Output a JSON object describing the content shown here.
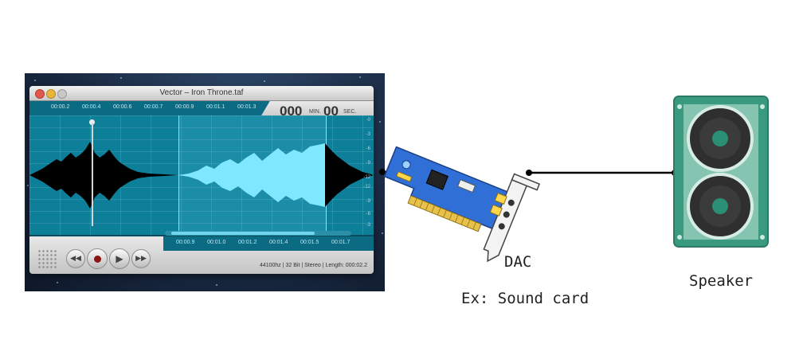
{
  "app": {
    "window_title": "Vector – Iron Throne.taf",
    "ruler_ticks": [
      "00:00.2",
      "00:00.4",
      "00:00.6",
      "00:00.7",
      "00:00.9",
      "00:01.1",
      "00:01.3"
    ],
    "minutes_value": "000",
    "minutes_unit": "MIN.",
    "seconds_value": "00",
    "seconds_unit": "SEC.",
    "db_scale": [
      "-0",
      "-3",
      "-6",
      "-9",
      "-12",
      "-12",
      "-9",
      "-6",
      "-3"
    ],
    "bottom_ticks": [
      "00:00.9",
      "00:01.0",
      "00:01.2",
      "00:01.4",
      "00:01.5",
      "00:01.7"
    ],
    "status": "44100hz | 32 Bit | Stereo | Length: 000:02.2",
    "buttons": [
      "rewind-icon",
      "record-icon",
      "play-icon",
      "fast-forward-icon"
    ],
    "colors": {
      "background": "#0d7f98",
      "waveform": "#000000",
      "selection_waveform": "#7fe7ff"
    }
  },
  "dac": {
    "label": "DAC",
    "example": "Ex: Sound card"
  },
  "speaker": {
    "label": "Speaker",
    "colors": {
      "body": "#3a9a80",
      "panel": "#86c4b2",
      "cone": "#2f2f2f",
      "center": "#2a8f75"
    }
  },
  "connector_color": "#000000"
}
